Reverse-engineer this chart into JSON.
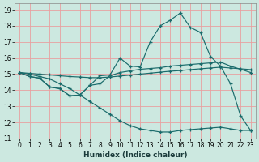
{
  "xlabel": "Humidex (Indice chaleur)",
  "bg_color": "#cce8e0",
  "grid_color": "#e8a0a0",
  "line_color": "#1a6b6b",
  "xlim": [
    -0.5,
    23.5
  ],
  "ylim": [
    11,
    19.4
  ],
  "yticks": [
    11,
    12,
    13,
    14,
    15,
    16,
    17,
    18,
    19
  ],
  "xticks": [
    0,
    1,
    2,
    3,
    4,
    5,
    6,
    7,
    8,
    9,
    10,
    11,
    12,
    13,
    14,
    15,
    16,
    17,
    18,
    19,
    20,
    21,
    22,
    23
  ],
  "x": [
    0,
    1,
    2,
    3,
    4,
    5,
    6,
    7,
    8,
    9,
    10,
    11,
    12,
    13,
    14,
    15,
    16,
    17,
    18,
    19,
    20,
    21,
    22,
    23
  ],
  "series1": [
    15.1,
    14.85,
    14.75,
    14.2,
    14.1,
    13.65,
    13.7,
    14.3,
    14.9,
    14.95,
    16.0,
    15.5,
    15.45,
    17.0,
    18.0,
    18.35,
    18.8,
    17.9,
    17.6,
    16.1,
    15.5,
    14.4,
    12.4,
    11.5
  ],
  "series2": [
    15.1,
    14.85,
    14.75,
    14.2,
    14.1,
    13.65,
    13.7,
    14.3,
    14.4,
    14.9,
    15.1,
    15.2,
    15.3,
    15.35,
    15.4,
    15.5,
    15.55,
    15.6,
    15.65,
    15.7,
    15.75,
    15.5,
    15.3,
    15.1
  ],
  "series3": [
    15.1,
    15.05,
    15.0,
    14.95,
    14.9,
    14.85,
    14.82,
    14.78,
    14.78,
    14.82,
    14.88,
    14.94,
    15.0,
    15.06,
    15.12,
    15.18,
    15.22,
    15.28,
    15.33,
    15.38,
    15.43,
    15.38,
    15.33,
    15.28
  ],
  "series4": [
    15.1,
    15.0,
    14.85,
    14.7,
    14.4,
    14.1,
    13.7,
    13.3,
    12.9,
    12.5,
    12.1,
    11.8,
    11.6,
    11.5,
    11.4,
    11.4,
    11.5,
    11.55,
    11.6,
    11.65,
    11.7,
    11.6,
    11.5,
    11.5
  ],
  "xlabel_fontsize": 6.5,
  "tick_fontsize": 5.5
}
